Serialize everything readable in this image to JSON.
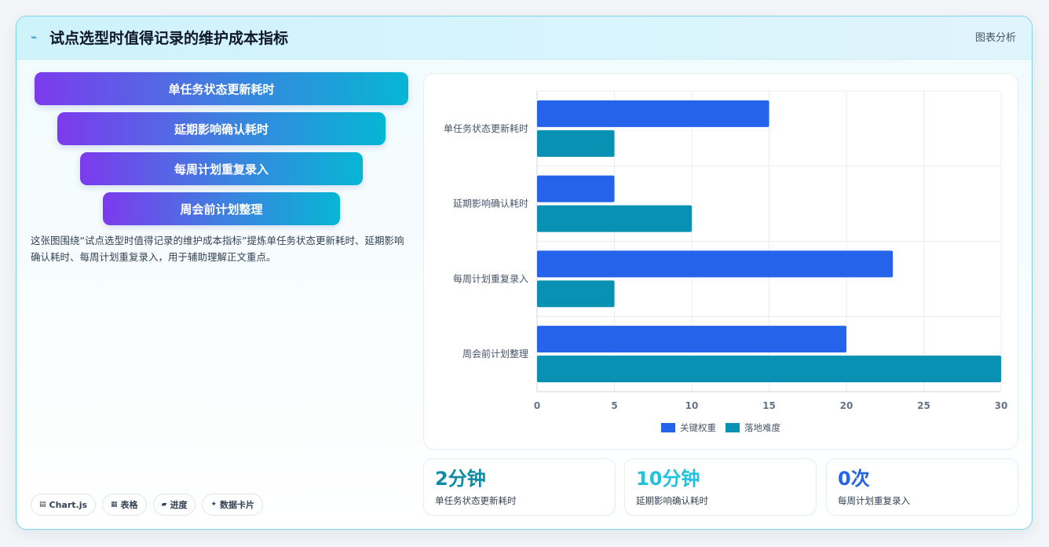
{
  "header": {
    "title": "试点选型时值得记录的维护成本指标",
    "icon": "pulse-icon",
    "right_label": "图表分析"
  },
  "funnel": {
    "steps": [
      "单任务状态更新耗时",
      "延期影响确认耗时",
      "每周计划重复录入",
      "周会前计划整理"
    ]
  },
  "description": "这张图围绕“试点选型时值得记录的维护成本指标”提炼单任务状态更新耗时、延期影响确认耗时、每周计划重复录入，用于辅助理解正文重点。",
  "tags": [
    {
      "icon": "▤",
      "label": "Chart.js"
    },
    {
      "icon": "▦",
      "label": "表格"
    },
    {
      "icon": "▰",
      "label": "进度"
    },
    {
      "icon": "✦",
      "label": "数据卡片"
    }
  ],
  "stats": [
    {
      "value": "2分钟",
      "label": "单任务状态更新耗时",
      "color": "#0e8aa3"
    },
    {
      "value": "10分钟",
      "label": "延期影响确认耗时",
      "color": "#22c1de"
    },
    {
      "value": "0次",
      "label": "每周计划重复录入",
      "color": "#2563eb"
    }
  ],
  "chart_data": {
    "type": "bar",
    "orientation": "horizontal",
    "categories": [
      "单任务状态更新耗时",
      "延期影响确认耗时",
      "每周计划重复录入",
      "周会前计划整理"
    ],
    "series": [
      {
        "name": "关键权重",
        "values": [
          15,
          5,
          23,
          20
        ],
        "color": "#2563eb"
      },
      {
        "name": "落地难度",
        "values": [
          5,
          10,
          5,
          30
        ],
        "color": "#0891b2"
      }
    ],
    "xlim": [
      0,
      30
    ],
    "xticks": [
      0,
      5,
      10,
      15,
      20,
      25,
      30
    ],
    "grid": true,
    "legend": "bottom"
  }
}
